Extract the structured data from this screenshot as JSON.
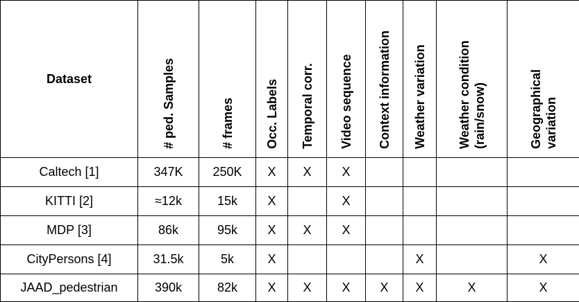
{
  "headers": [
    "Dataset",
    "# ped. Samples",
    "# frames",
    "Occ. Labels",
    "Temporal corr.",
    "Video sequence",
    "Context information",
    "Weather variation",
    "Weather condition (rain/snow)",
    "Geographical variation"
  ],
  "header_lines": {
    "weather_condition": [
      "Weather condition",
      "(rain/snow)"
    ],
    "geographical": [
      "Geographical",
      "variation"
    ]
  },
  "rows": [
    [
      "Caltech [1]",
      "347K",
      "250K",
      "X",
      "X",
      "X",
      "",
      "",
      "",
      ""
    ],
    [
      "KITTI [2]",
      "≈12k",
      "15k",
      "X",
      "",
      "X",
      "",
      "",
      "",
      ""
    ],
    [
      "MDP [3]",
      "86k",
      "95k",
      "X",
      "X",
      "X",
      "",
      "",
      "",
      ""
    ],
    [
      "CityPersons [4]",
      "31.5k",
      "5k",
      "X",
      "",
      "",
      "",
      "X",
      "",
      "X"
    ],
    [
      "JAAD_pedestrian",
      "390k",
      "82k",
      "X",
      "X",
      "X",
      "X",
      "X",
      "X",
      "X"
    ]
  ]
}
